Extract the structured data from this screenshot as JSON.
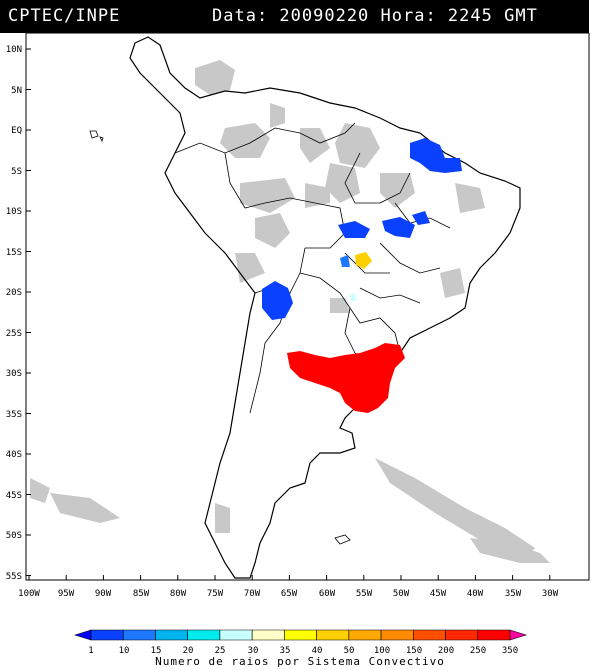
{
  "header": {
    "left": "CPTEC/INPE",
    "right": "Data: 20090220 Hora: 2245 GMT"
  },
  "map": {
    "lat_labels": [
      "10N",
      "5N",
      "EQ",
      "5S",
      "10S",
      "15S",
      "20S",
      "25S",
      "30S",
      "35S",
      "40S",
      "45S",
      "50S",
      "55S"
    ],
    "lon_labels": [
      "100W",
      "95W",
      "90W",
      "85W",
      "80W",
      "75W",
      "70W",
      "65W",
      "60W",
      "55W",
      "50W",
      "45W",
      "40W",
      "35W",
      "30W"
    ],
    "lightning_regions": [
      {
        "name": "north-east-brazil",
        "level": "1"
      },
      {
        "name": "central-brazil",
        "level": "1"
      },
      {
        "name": "goias",
        "level": "40"
      },
      {
        "name": "bolivia-paraguay",
        "level": "1"
      },
      {
        "name": "south-brazil-argentina",
        "level": "350"
      }
    ]
  },
  "legend": {
    "labels": [
      "1",
      "10",
      "15",
      "20",
      "25",
      "30",
      "35",
      "40",
      "50",
      "100",
      "150",
      "200",
      "250",
      "350"
    ],
    "colors": [
      "#0000ff",
      "#0a40ff",
      "#1e78ff",
      "#00b4f0",
      "#00ecec",
      "#c8ffff",
      "#ffffc8",
      "#ffff00",
      "#ffd000",
      "#ffa800",
      "#ff8c00",
      "#ff5000",
      "#ff2800",
      "#ff0000",
      "#ff00a0"
    ],
    "title": "Numero de raios por Sistema Convectivo"
  }
}
